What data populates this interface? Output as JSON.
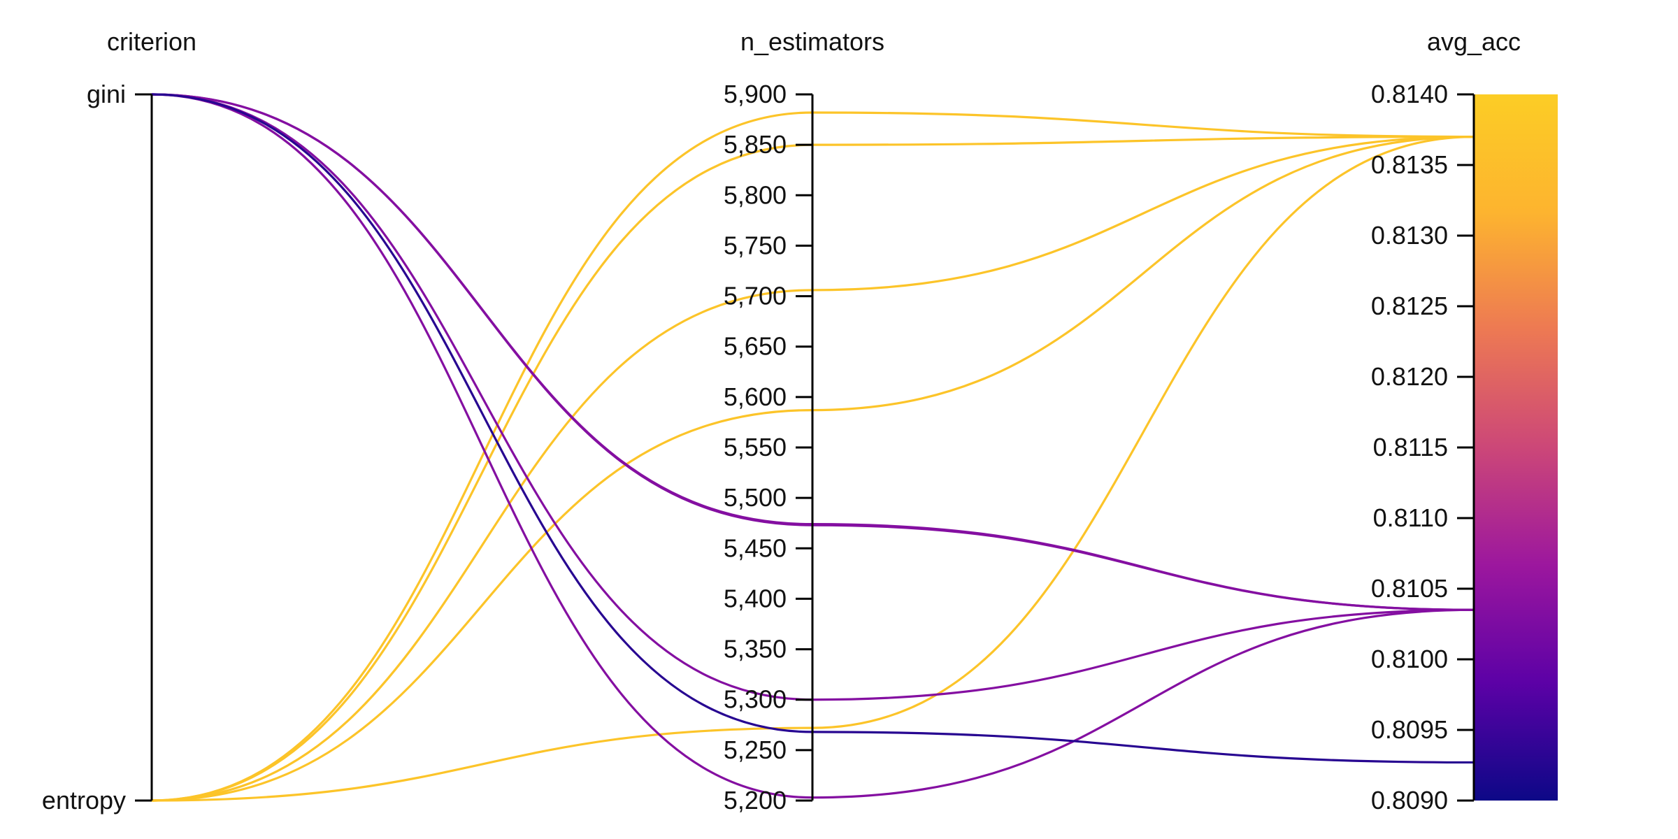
{
  "chart_data": {
    "type": "parallel_coordinates",
    "title": "",
    "dimensions": [
      {
        "name": "criterion",
        "label": "criterion",
        "kind": "categorical",
        "categories": [
          "gini",
          "entropy"
        ],
        "ticks": [
          "gini",
          "entropy"
        ]
      },
      {
        "name": "n_estimators",
        "label": "n_estimators",
        "kind": "numeric",
        "range": [
          5200,
          5900
        ],
        "ticks": [
          "5,900",
          "5,850",
          "5,800",
          "5,750",
          "5,700",
          "5,650",
          "5,600",
          "5,550",
          "5,500",
          "5,450",
          "5,400",
          "5,350",
          "5,300",
          "5,250",
          "5,200"
        ],
        "tick_values": [
          5900,
          5850,
          5800,
          5750,
          5700,
          5650,
          5600,
          5550,
          5500,
          5450,
          5400,
          5350,
          5300,
          5250,
          5200
        ]
      },
      {
        "name": "avg_acc",
        "label": "avg_acc",
        "kind": "numeric",
        "range": [
          0.809,
          0.814
        ],
        "ticks": [
          "0.8140",
          "0.8135",
          "0.8130",
          "0.8125",
          "0.8120",
          "0.8115",
          "0.8110",
          "0.8105",
          "0.8100",
          "0.8095",
          "0.8090"
        ],
        "tick_values": [
          0.814,
          0.8135,
          0.813,
          0.8125,
          0.812,
          0.8115,
          0.811,
          0.8105,
          0.81,
          0.8095,
          0.809
        ]
      }
    ],
    "series": [
      {
        "values": [
          "entropy",
          5882,
          0.8137
        ]
      },
      {
        "values": [
          "entropy",
          5850,
          0.8137
        ]
      },
      {
        "values": [
          "entropy",
          5706,
          0.8137
        ]
      },
      {
        "values": [
          "entropy",
          5587,
          0.8137
        ]
      },
      {
        "values": [
          "entropy",
          5272,
          0.8137
        ]
      },
      {
        "values": [
          "gini",
          5473,
          0.81035
        ]
      },
      {
        "values": [
          "gini",
          5474,
          0.81035
        ]
      },
      {
        "values": [
          "gini",
          5300,
          0.81035
        ]
      },
      {
        "values": [
          "gini",
          5203,
          0.81035
        ]
      },
      {
        "values": [
          "gini",
          5268,
          0.80927
        ]
      }
    ],
    "colorbar": {
      "dimension": "avg_acc",
      "min": 0.809,
      "max": 0.814,
      "colors": [
        "#0d0887",
        "#5c01a6",
        "#9c179e",
        "#cc4778",
        "#ed7953",
        "#fdb42f",
        "#fccd25"
      ]
    },
    "grid": false
  }
}
